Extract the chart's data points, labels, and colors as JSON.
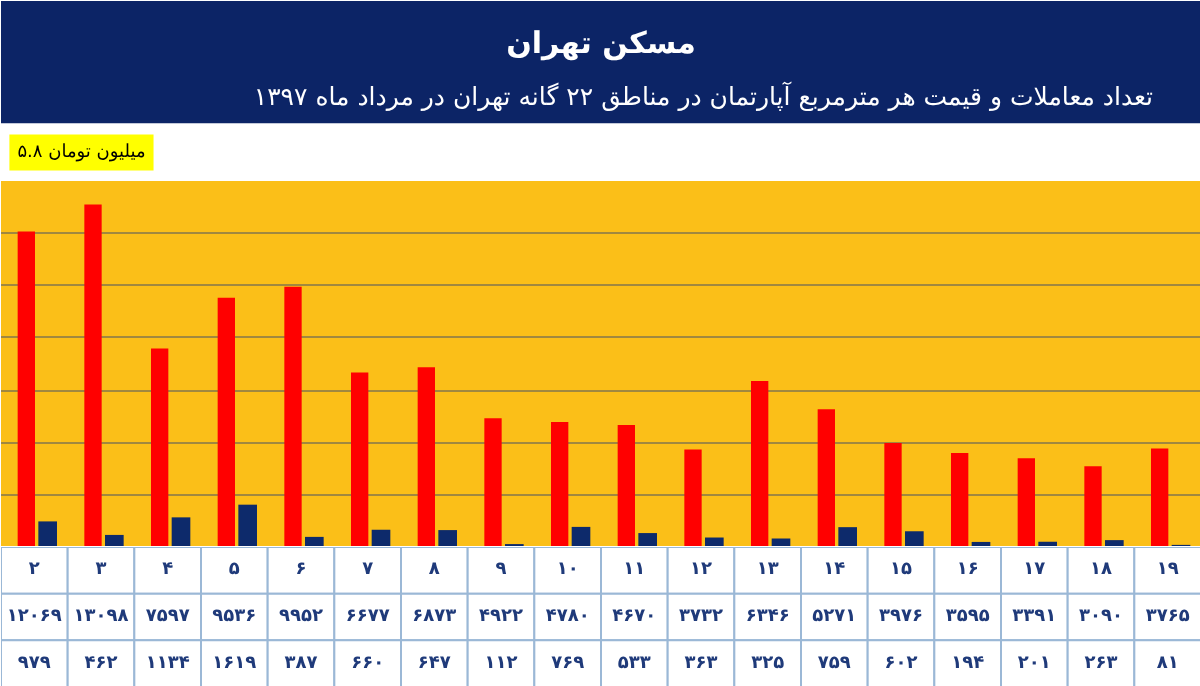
{
  "chart_data": {
    "type": "bar",
    "title": "مسکن تهران",
    "subtitle": "تعداد معاملات و قیمت هر مترمربع آپارتمان در مناطق ۲۲ گانه تهران در مرداد ماه ۱۳۹۷",
    "categories": [
      "۲",
      "۳",
      "۴",
      "۵",
      "۶",
      "۷",
      "۸",
      "۹",
      "۱۰",
      "۱۱",
      "۱۲",
      "۱۳",
      "۱۴",
      "۱۵",
      "۱۶",
      "۱۷",
      "۱۸",
      "۱۹"
    ],
    "series": [
      {
        "color": "#ff0000",
        "values": [
          12069,
          13098,
          7597,
          9536,
          9952,
          6677,
          6873,
          4922,
          4780,
          4670,
          3732,
          6346,
          5271,
          3976,
          3595,
          3391,
          3090,
          3765
        ],
        "value_labels": [
          "۱۲۰۶۹",
          "۱۳۰۹۸",
          "۷۵۹۷",
          "۹۵۳۶",
          "۹۹۵۲",
          "۶۶۷۷",
          "۶۸۷۳",
          "۴۹۲۲",
          "۴۷۸۰",
          "۴۶۷۰",
          "۳۷۳۲",
          "۶۳۴۶",
          "۵۲۷۱",
          "۳۹۷۶",
          "۳۵۹۵",
          "۳۳۹۱",
          "۳۰۹۰",
          "۳۷۶۵"
        ]
      },
      {
        "color": "#0d2a6b",
        "values": [
          979,
          462,
          1134,
          1619,
          387,
          660,
          647,
          112,
          769,
          533,
          363,
          325,
          759,
          602,
          194,
          201,
          263,
          81
        ],
        "value_labels": [
          "۹۷۹",
          "۴۶۲",
          "۱۱۳۴",
          "۱۶۱۹",
          "۳۸۷",
          "۶۶۰",
          "۶۴۷",
          "۱۱۲",
          "۷۶۹",
          "۵۳۳",
          "۳۶۳",
          "۳۲۵",
          "۷۵۹",
          "۶۰۲",
          "۱۹۴",
          "۲۰۱",
          "۲۶۳",
          "۸۱"
        ]
      }
    ],
    "ylim": [
      0,
      14000
    ],
    "yticks": [
      {
        "value": 0,
        "label": null
      },
      {
        "value": 2000,
        "label": null
      },
      {
        "value": 4000,
        "label": null
      },
      {
        "value": 6000,
        "label": null
      },
      {
        "value": 8000,
        "label": null
      },
      {
        "value": 10000,
        "label": null
      },
      {
        "value": 12000,
        "label": null
      },
      {
        "value": 14000,
        "label": null
      }
    ],
    "grid": "y",
    "tick_labels": false,
    "annotations": [
      "میلیون تومان ۵.۸"
    ]
  }
}
